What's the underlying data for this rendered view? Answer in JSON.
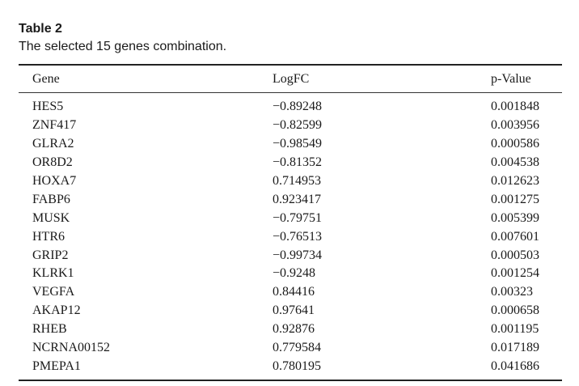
{
  "table": {
    "title": "Table 2",
    "caption": "The selected 15 genes combination.",
    "headers": {
      "gene": "Gene",
      "logfc": "LogFC",
      "pvalue": "p-Value"
    },
    "rows": [
      {
        "gene": "HES5",
        "logfc": "−0.89248",
        "pvalue": "0.001848"
      },
      {
        "gene": "ZNF417",
        "logfc": "−0.82599",
        "pvalue": "0.003956"
      },
      {
        "gene": "GLRA2",
        "logfc": "−0.98549",
        "pvalue": "0.000586"
      },
      {
        "gene": "OR8D2",
        "logfc": "−0.81352",
        "pvalue": "0.004538"
      },
      {
        "gene": "HOXA7",
        "logfc": "0.714953",
        "pvalue": "0.012623"
      },
      {
        "gene": "FABP6",
        "logfc": "0.923417",
        "pvalue": "0.001275"
      },
      {
        "gene": "MUSK",
        "logfc": "−0.79751",
        "pvalue": "0.005399"
      },
      {
        "gene": "HTR6",
        "logfc": "−0.76513",
        "pvalue": "0.007601"
      },
      {
        "gene": "GRIP2",
        "logfc": "−0.99734",
        "pvalue": "0.000503"
      },
      {
        "gene": "KLRK1",
        "logfc": "−0.9248",
        "pvalue": "0.001254"
      },
      {
        "gene": "VEGFA",
        "logfc": "0.84416",
        "pvalue": "0.00323"
      },
      {
        "gene": "AKAP12",
        "logfc": "0.97641",
        "pvalue": "0.000658"
      },
      {
        "gene": "RHEB",
        "logfc": "0.92876",
        "pvalue": "0.001195"
      },
      {
        "gene": "NCRNA00152",
        "logfc": "0.779584",
        "pvalue": "0.017189"
      },
      {
        "gene": "PMEPA1",
        "logfc": "0.780195",
        "pvalue": "0.041686"
      }
    ]
  }
}
